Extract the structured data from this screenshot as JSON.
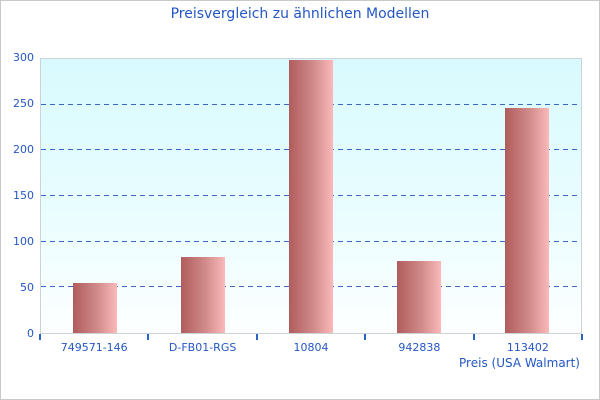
{
  "chart_data": {
    "type": "bar",
    "title": "Preisvergleich zu ähnlichen Modellen",
    "categories": [
      "749571-146",
      "D-FB01-RGS",
      "10804",
      "942838",
      "113402"
    ],
    "values": [
      55,
      83,
      299,
      79,
      246
    ],
    "xlabel": "Preis (USA Walmart)",
    "ylabel": "",
    "ylim": [
      0,
      300
    ],
    "y_ticks": [
      0,
      50,
      100,
      150,
      200,
      250,
      300
    ],
    "grid": "horizontal-dashed",
    "legend": "none",
    "colors": {
      "text_accent": "#2457c5",
      "gridline": "#3a69c7",
      "axis_tick": "#2a62c8",
      "bar_gradient_left": "#b05c5c",
      "bar_gradient_right": "#fbb9b9",
      "plot_bg_top": "#d8fafe",
      "plot_bg_bottom": "#ffffff",
      "plot_border": "#ccd2d6",
      "frame_border": "#c9c9c9"
    }
  }
}
